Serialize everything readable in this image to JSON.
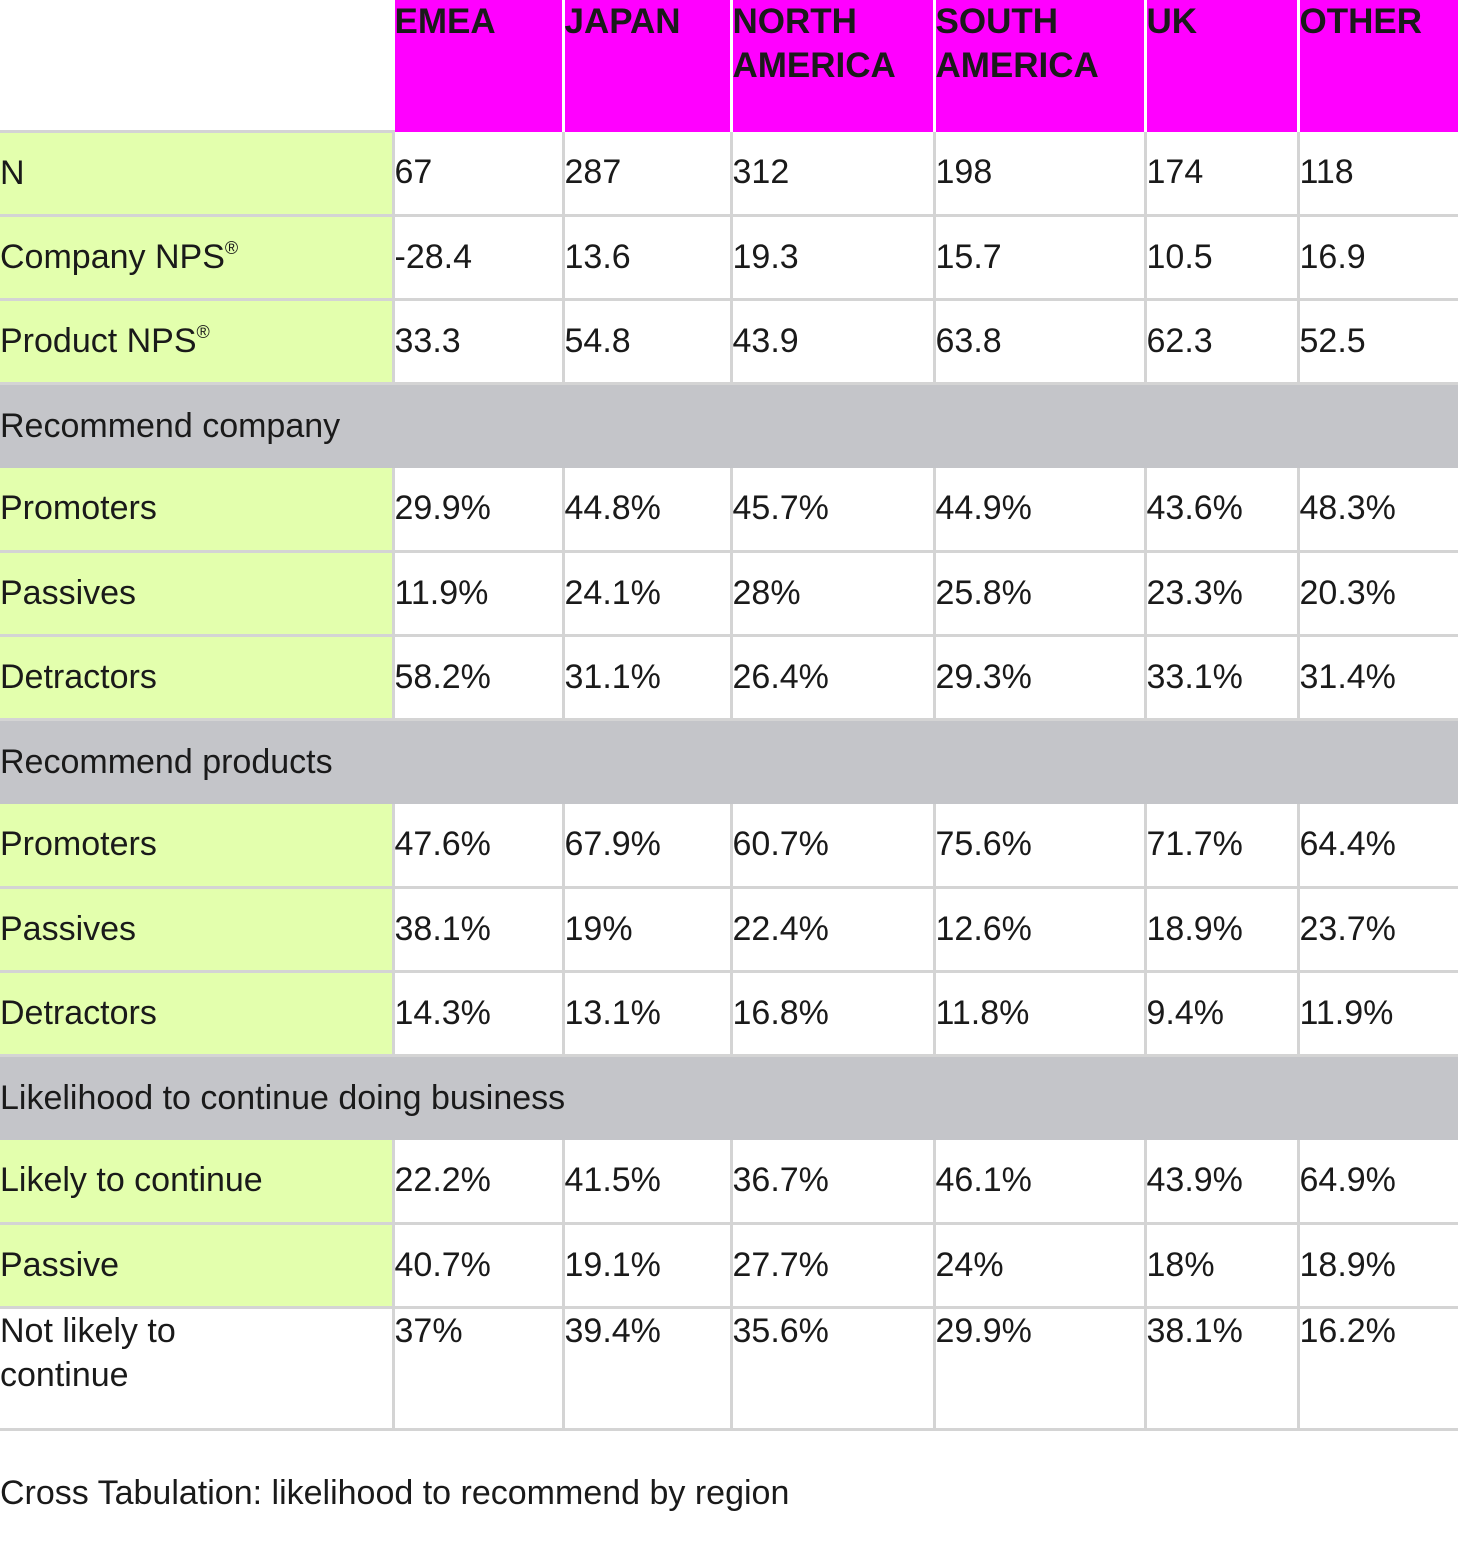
{
  "columns": [
    "EMEA",
    "JAPAN",
    "NORTH AMERICA",
    "SOUTH AMERICA",
    "UK",
    "OTHER"
  ],
  "rows": [
    {
      "type": "data",
      "label": "N",
      "sup": "",
      "values": [
        "67",
        "287",
        "312",
        "198",
        "174",
        "118"
      ]
    },
    {
      "type": "data",
      "label": "Company NPS",
      "sup": "®",
      "values": [
        "-28.4",
        "13.6",
        "19.3",
        "15.7",
        "10.5",
        "16.9"
      ]
    },
    {
      "type": "data",
      "label": "Product NPS",
      "sup": "®",
      "values": [
        "33.3",
        "54.8",
        "43.9",
        "63.8",
        "62.3",
        "52.5"
      ]
    },
    {
      "type": "section",
      "label": "Recommend company"
    },
    {
      "type": "data",
      "label": "Promoters",
      "sup": "",
      "values": [
        "29.9%",
        "44.8%",
        "45.7%",
        "44.9%",
        "43.6%",
        "48.3%"
      ]
    },
    {
      "type": "data",
      "label": "Passives",
      "sup": "",
      "values": [
        "11.9%",
        "24.1%",
        "28%",
        "25.8%",
        "23.3%",
        "20.3%"
      ]
    },
    {
      "type": "data",
      "label": "Detractors",
      "sup": "",
      "values": [
        "58.2%",
        "31.1%",
        "26.4%",
        "29.3%",
        "33.1%",
        "31.4%"
      ]
    },
    {
      "type": "section",
      "label": "Recommend products"
    },
    {
      "type": "data",
      "label": "Promoters",
      "sup": "",
      "values": [
        "47.6%",
        "67.9%",
        "60.7%",
        "75.6%",
        "71.7%",
        "64.4%"
      ]
    },
    {
      "type": "data",
      "label": "Passives",
      "sup": "",
      "values": [
        "38.1%",
        "19%",
        "22.4%",
        "12.6%",
        "18.9%",
        "23.7%"
      ]
    },
    {
      "type": "data",
      "label": "Detractors",
      "sup": "",
      "values": [
        "14.3%",
        "13.1%",
        "16.8%",
        "11.8%",
        "9.4%",
        "11.9%"
      ]
    },
    {
      "type": "section",
      "label": "Likelihood to continue doing business"
    },
    {
      "type": "data",
      "label": "Likely to continue",
      "sup": "",
      "values": [
        "22.2%",
        "41.5%",
        "36.7%",
        "46.1%",
        "43.9%",
        "64.9%"
      ]
    },
    {
      "type": "data",
      "label": "Passive",
      "sup": "",
      "values": [
        "40.7%",
        "19.1%",
        "27.7%",
        "24%",
        "18%",
        "18.9%"
      ]
    },
    {
      "type": "data",
      "label": "Not likely to continue",
      "sup": "",
      "tall": true,
      "values": [
        "37%",
        "39.4%",
        "35.6%",
        "29.9%",
        "38.1%",
        "16.2%"
      ]
    }
  ],
  "caption": "Cross Tabulation: likelihood to recommend by region",
  "colors": {
    "header": "#ff00ff",
    "row_label": "#e3ffad",
    "section": "#c4c5c9",
    "grid": "#d4d4d4"
  }
}
